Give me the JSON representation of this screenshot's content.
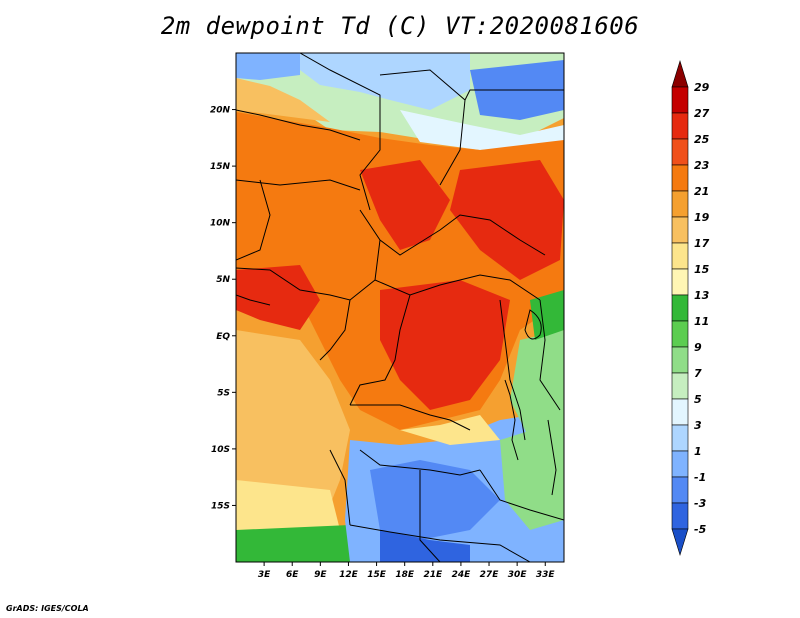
{
  "title": "2m dewpoint Td (C) VT:2020081606",
  "footer": "GrADS: IGES/COLA",
  "map": {
    "lon_range": [
      0,
      35
    ],
    "lat_range": [
      -20,
      25
    ],
    "lat_ticks": [
      {
        "value": 20,
        "label": "20N"
      },
      {
        "value": 15,
        "label": "15N"
      },
      {
        "value": 10,
        "label": "10N"
      },
      {
        "value": 5,
        "label": "5N"
      },
      {
        "value": 0,
        "label": "EQ"
      },
      {
        "value": -5,
        "label": "5S"
      },
      {
        "value": -10,
        "label": "10S"
      },
      {
        "value": -15,
        "label": "15S"
      }
    ],
    "lon_ticks": [
      {
        "value": 3,
        "label": "3E"
      },
      {
        "value": 6,
        "label": "6E"
      },
      {
        "value": 9,
        "label": "9E"
      },
      {
        "value": 12,
        "label": "12E"
      },
      {
        "value": 15,
        "label": "15E"
      },
      {
        "value": 18,
        "label": "18E"
      },
      {
        "value": 21,
        "label": "21E"
      },
      {
        "value": 24,
        "label": "24E"
      },
      {
        "value": 27,
        "label": "27E"
      },
      {
        "value": 30,
        "label": "30E"
      },
      {
        "value": 33,
        "label": "33E"
      }
    ]
  },
  "colorbar": {
    "levels": [
      "29",
      "27",
      "25",
      "23",
      "21",
      "19",
      "17",
      "15",
      "13",
      "11",
      "9",
      "7",
      "5",
      "3",
      "1",
      "-1",
      "-3",
      "-5"
    ],
    "colors": [
      "#8b0000",
      "#c40000",
      "#e62a10",
      "#f0501a",
      "#f57a10",
      "#f5a030",
      "#f8c060",
      "#fde58c",
      "#fff6b4",
      "#33b838",
      "#5ccd50",
      "#90dd88",
      "#c6eec0",
      "#e3f6ff",
      "#aed6ff",
      "#7fb3ff",
      "#5389f4",
      "#2f64e0",
      "#1a4fc8"
    ]
  }
}
